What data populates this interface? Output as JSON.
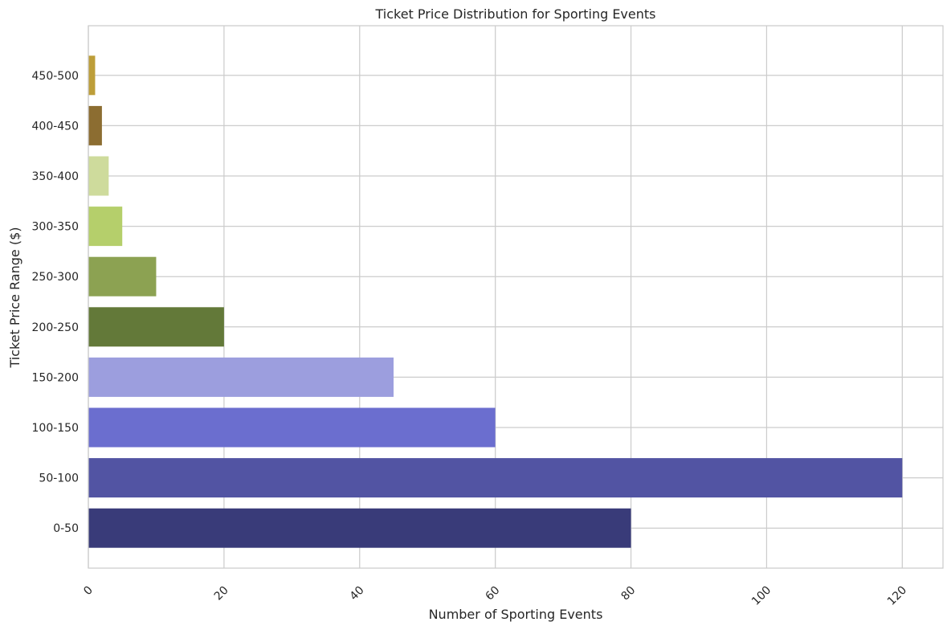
{
  "chart_data": {
    "type": "bar",
    "orientation": "horizontal",
    "title": "Ticket Price Distribution for Sporting Events",
    "xlabel": "Number of Sporting Events",
    "ylabel": "Ticket Price Range ($)",
    "categories": [
      "0-50",
      "50-100",
      "100-150",
      "150-200",
      "200-250",
      "250-300",
      "300-350",
      "350-400",
      "400-450",
      "450-500"
    ],
    "values": [
      80,
      120,
      60,
      45,
      20,
      10,
      5,
      3,
      2,
      1
    ],
    "colors": [
      "#393b79",
      "#5254a3",
      "#6b6ecf",
      "#9c9ede",
      "#637939",
      "#8ca252",
      "#b5cf6b",
      "#cedb9c",
      "#8c6d31",
      "#bd9e39"
    ],
    "xlim": [
      0,
      126
    ],
    "xticks": [
      0,
      20,
      40,
      60,
      80,
      100,
      120
    ],
    "grid": true,
    "legend": "none"
  }
}
